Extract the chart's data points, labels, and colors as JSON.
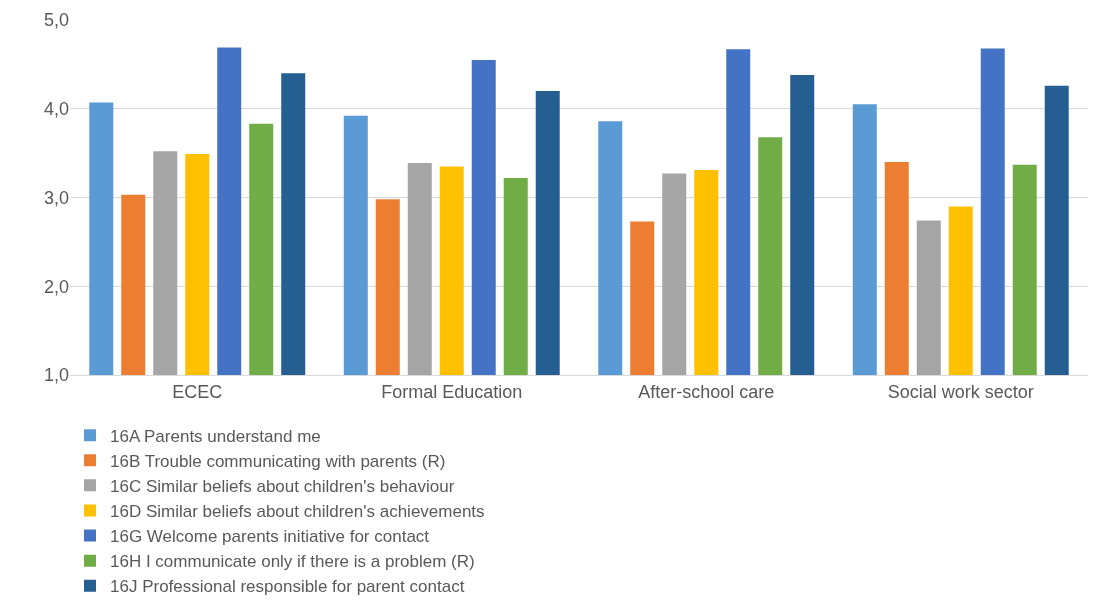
{
  "chart_data": {
    "type": "bar",
    "categories": [
      "ECEC",
      "Formal Education",
      "After-school care",
      "Social work sector"
    ],
    "series": [
      {
        "name": "16A Parents understand me",
        "color": "#5b9bd5",
        "values": [
          4.07,
          3.92,
          3.86,
          4.05
        ]
      },
      {
        "name": "16B Trouble communicating with parents (R)",
        "color": "#ed7d31",
        "values": [
          3.03,
          2.98,
          2.73,
          3.4
        ]
      },
      {
        "name": "16C Similar beliefs about children's behaviour",
        "color": "#a5a5a5",
        "values": [
          3.52,
          3.39,
          3.27,
          2.74
        ]
      },
      {
        "name": "16D Similar beliefs about children's achievements",
        "color": "#ffc000",
        "values": [
          3.49,
          3.35,
          3.31,
          2.9
        ]
      },
      {
        "name": "16G Welcome parents initiative for contact",
        "color": "#4472c4",
        "values": [
          4.69,
          4.55,
          4.67,
          4.68
        ]
      },
      {
        "name": "16H I communicate only if there is a problem (R)",
        "color": "#70ad47",
        "values": [
          3.83,
          3.22,
          3.68,
          3.37
        ]
      },
      {
        "name": "16J Professional responsible for parent contact",
        "color": "#255e91",
        "values": [
          4.4,
          4.2,
          4.38,
          4.26
        ]
      }
    ],
    "ylim": [
      1,
      5
    ],
    "yticks": [
      {
        "value": 1,
        "label": "1,0"
      },
      {
        "value": 2,
        "label": "2,0"
      },
      {
        "value": 3,
        "label": "3,0"
      },
      {
        "value": 4,
        "label": "4,0"
      },
      {
        "value": 5,
        "label": "5,0"
      }
    ],
    "grid": "y",
    "legend": "bottom"
  }
}
